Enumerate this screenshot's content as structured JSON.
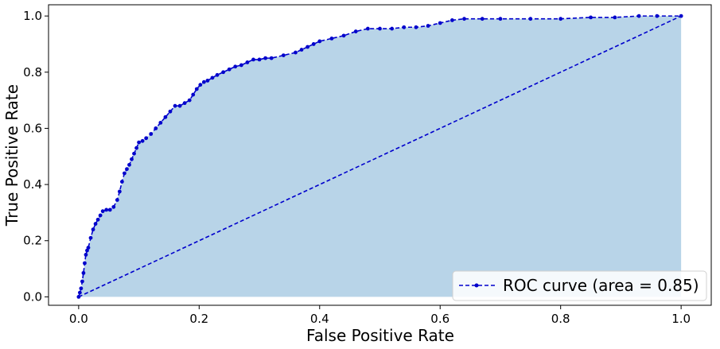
{
  "chart_data": {
    "type": "line",
    "xlabel": "False Positive Rate",
    "ylabel": "True Positive Rate",
    "xlim": [
      -0.05,
      1.05
    ],
    "ylim": [
      -0.03,
      1.04
    ],
    "xticks": [
      "0.0",
      "0.2",
      "0.4",
      "0.6",
      "0.8",
      "1.0"
    ],
    "yticks": [
      "0.0",
      "0.2",
      "0.4",
      "0.6",
      "0.8",
      "1.0"
    ],
    "grid": false,
    "legend_placement": "lower-right",
    "fill_color": "#b8d4e8",
    "curve_color": "#0000cc",
    "series": [
      {
        "name": "ROC curve (area = 0.85)",
        "x": [
          0.0,
          0.002,
          0.004,
          0.006,
          0.008,
          0.01,
          0.012,
          0.014,
          0.016,
          0.02,
          0.024,
          0.028,
          0.032,
          0.036,
          0.04,
          0.046,
          0.052,
          0.058,
          0.064,
          0.068,
          0.072,
          0.076,
          0.08,
          0.084,
          0.088,
          0.092,
          0.096,
          0.1,
          0.106,
          0.112,
          0.12,
          0.128,
          0.136,
          0.144,
          0.152,
          0.16,
          0.168,
          0.176,
          0.184,
          0.19,
          0.196,
          0.202,
          0.208,
          0.214,
          0.222,
          0.23,
          0.24,
          0.25,
          0.26,
          0.27,
          0.28,
          0.29,
          0.3,
          0.31,
          0.32,
          0.34,
          0.36,
          0.37,
          0.38,
          0.39,
          0.4,
          0.42,
          0.44,
          0.46,
          0.48,
          0.5,
          0.52,
          0.54,
          0.56,
          0.58,
          0.6,
          0.62,
          0.64,
          0.67,
          0.7,
          0.75,
          0.8,
          0.85,
          0.89,
          0.93,
          0.96,
          1.0
        ],
        "y": [
          0.0,
          0.015,
          0.03,
          0.055,
          0.085,
          0.12,
          0.15,
          0.165,
          0.175,
          0.21,
          0.24,
          0.26,
          0.275,
          0.29,
          0.305,
          0.31,
          0.31,
          0.32,
          0.345,
          0.375,
          0.41,
          0.44,
          0.455,
          0.47,
          0.49,
          0.51,
          0.53,
          0.55,
          0.555,
          0.565,
          0.58,
          0.6,
          0.62,
          0.64,
          0.66,
          0.68,
          0.68,
          0.69,
          0.7,
          0.72,
          0.74,
          0.755,
          0.765,
          0.77,
          0.78,
          0.79,
          0.8,
          0.81,
          0.82,
          0.825,
          0.835,
          0.845,
          0.845,
          0.85,
          0.85,
          0.86,
          0.87,
          0.88,
          0.89,
          0.9,
          0.91,
          0.92,
          0.93,
          0.945,
          0.955,
          0.955,
          0.955,
          0.96,
          0.96,
          0.965,
          0.975,
          0.985,
          0.99,
          0.99,
          0.99,
          0.99,
          0.99,
          0.995,
          0.995,
          1.0,
          1.0,
          1.0
        ]
      },
      {
        "name": "",
        "x": [
          0.0,
          1.0
        ],
        "y": [
          0.0,
          1.0
        ]
      }
    ]
  }
}
